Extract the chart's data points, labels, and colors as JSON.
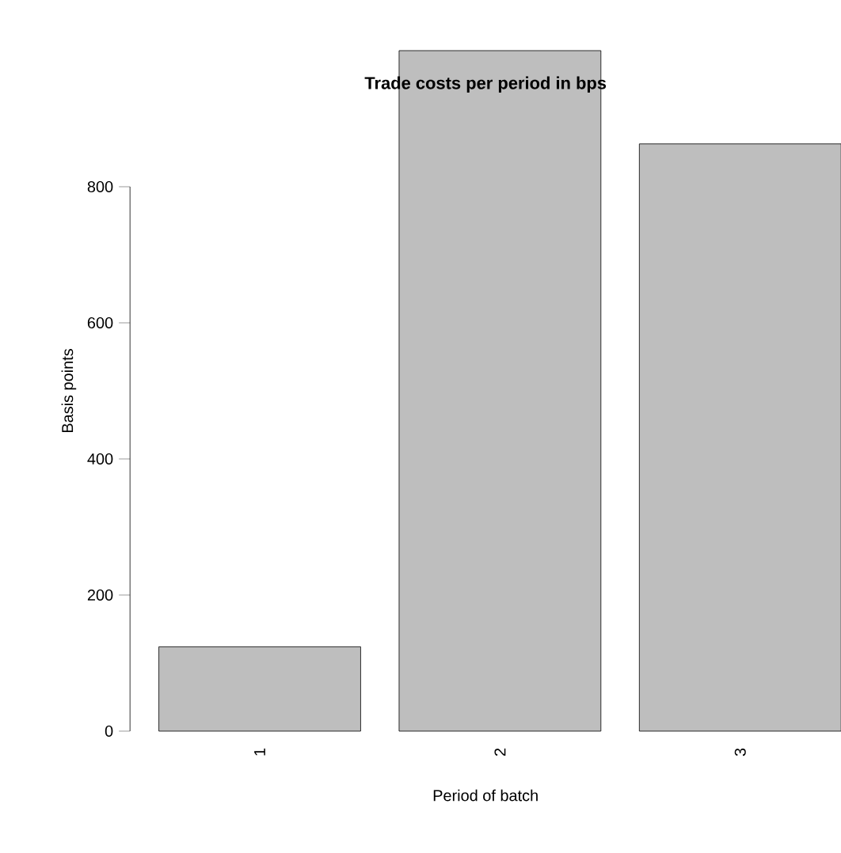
{
  "chart_data": {
    "type": "bar",
    "title": "Trade costs per period in bps",
    "xlabel": "Period of batch",
    "ylabel": "Basis points",
    "categories": [
      "1",
      "2",
      "3"
    ],
    "values": [
      124,
      1000,
      863
    ],
    "color": "#bebebe",
    "ylim": [
      0,
      1000
    ],
    "yticks": [
      0,
      200,
      400,
      600,
      800
    ]
  }
}
